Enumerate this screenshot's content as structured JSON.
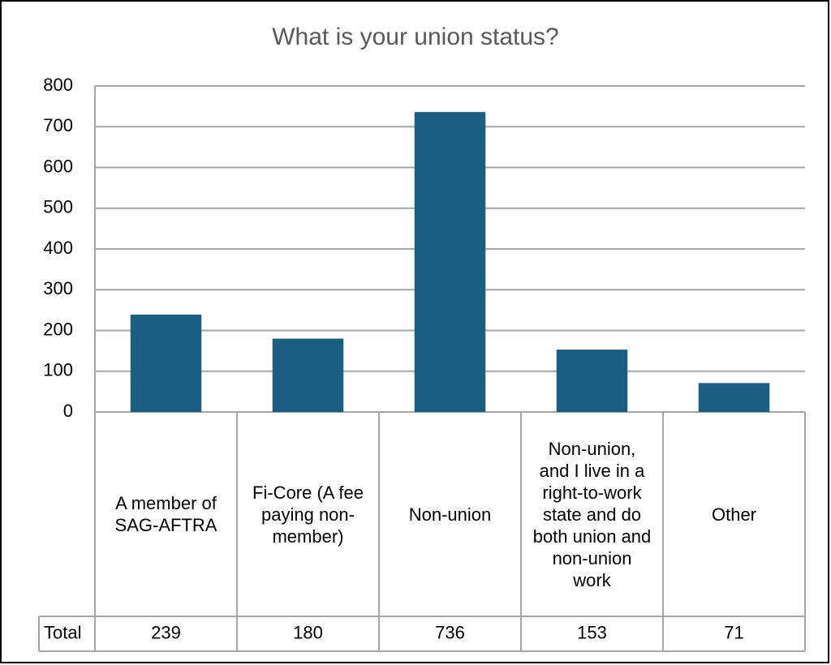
{
  "chart_data": {
    "type": "bar",
    "title": "What is your union status?",
    "categories": [
      "A member of SAG-AFTRA",
      "Fi-Core (A fee paying non-member)",
      "Non-union",
      "Non-union, and I live in a right-to-work state and do both union and non-union work",
      "Other"
    ],
    "series": [
      {
        "name": "Total",
        "color": "#1b5e81",
        "values": [
          239,
          180,
          736,
          153,
          71
        ]
      }
    ],
    "ylim": [
      0,
      800
    ],
    "yticks": [
      0,
      100,
      200,
      300,
      400,
      500,
      600,
      700,
      800
    ],
    "grid": true
  }
}
